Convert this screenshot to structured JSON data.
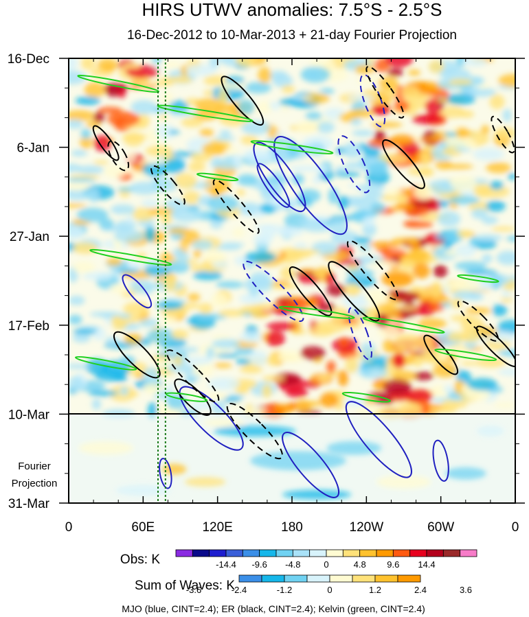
{
  "chart_data": {
    "type": "heatmap",
    "title": "HIRS UTWV anomalies: 7.5°S - 2.5°S",
    "subtitle": "16-Dec-2012 to 10-Mar-2013 + 21-day Fourier Projection",
    "xlabel": "",
    "ylabel": "",
    "x_ticks": [
      "0",
      "60E",
      "120E",
      "180",
      "120W",
      "60W",
      "0"
    ],
    "x_tick_values": [
      0,
      60,
      120,
      180,
      240,
      300,
      360
    ],
    "xlim": [
      0,
      360
    ],
    "y_ticks": [
      "16-Dec",
      "6-Jan",
      "27-Jan",
      "17-Feb",
      "10-Mar",
      "31-Mar"
    ],
    "y_tick_days": [
      0,
      21,
      42,
      63,
      84,
      105
    ],
    "ylim_days": [
      0,
      105
    ],
    "projection_start_day": 84,
    "projection_label_line1": "Fourier",
    "projection_label_line2": "Projection",
    "reference_lines": [
      {
        "lon": 72,
        "style": "dotted",
        "color": "#1a7a1a"
      },
      {
        "lon": 78,
        "style": "dotted",
        "color": "#1a7a1a"
      }
    ],
    "obs_colorbar": {
      "title": "Obs: K",
      "labels": [
        "-14.4",
        "-9.6",
        "-4.8",
        "0",
        "4.8",
        "9.6",
        "14.4"
      ],
      "colors": [
        "#8a2be2",
        "#0a0a8a",
        "#1e1ecf",
        "#3a5fd9",
        "#3b8fe8",
        "#16b7ea",
        "#70d2f2",
        "#a9e2f8",
        "#d8f3fb",
        "#fffbd2",
        "#ffe27a",
        "#ffc22e",
        "#ff9a00",
        "#ff5a10",
        "#e8001e",
        "#b4001c",
        "#9a2a2a",
        "#f77cc8"
      ]
    },
    "waves_colorbar": {
      "title": "Sum of Waves: K",
      "labels": [
        "-3.6",
        "-2.4",
        "-1.2",
        "0",
        "1.2",
        "2.4",
        "3.6"
      ],
      "colors": [
        "#3b8fe8",
        "#16b7ea",
        "#70d2f2",
        "#d8f3fb",
        "#fffbd2",
        "#ffe27a",
        "#ffc22e",
        "#ff9a00"
      ]
    },
    "contour_legend": "MJO (blue, CINT=2.4); ER (black, CINT=2.4); Kelvin (green, CINT=2.4)",
    "contour_series": [
      {
        "name": "MJO",
        "color": "#2020c0",
        "cint": 2.4
      },
      {
        "name": "ER",
        "color": "#000000",
        "cint": 2.4
      },
      {
        "name": "Kelvin",
        "color": "#20d020",
        "cint": 2.4
      }
    ]
  }
}
